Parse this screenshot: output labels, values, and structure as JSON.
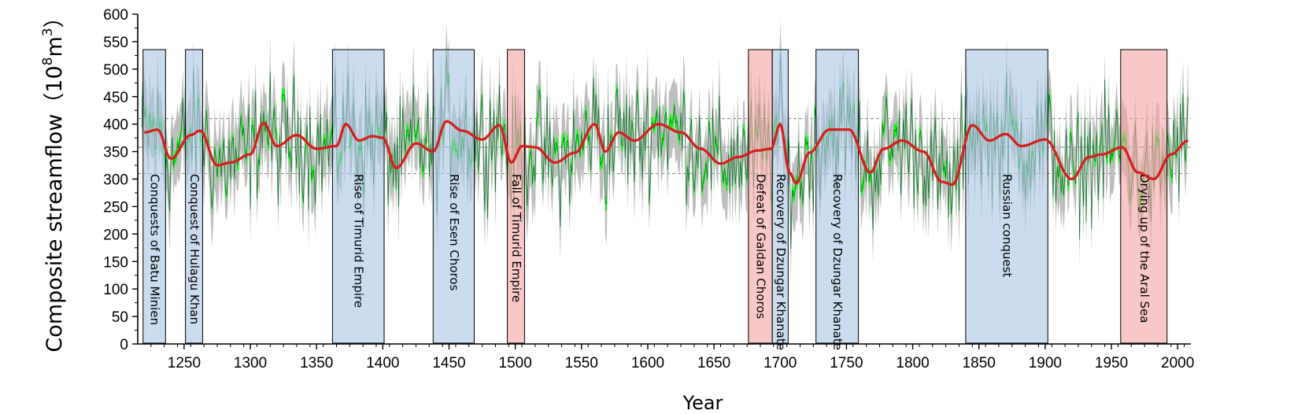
{
  "chart_data": {
    "type": "line",
    "xlabel": "Year",
    "ylabel": "Composite streamflow（10",
    "ylabel_sup1": "8",
    "ylabel_mid": "m",
    "ylabel_sup2": "3",
    "ylabel_end": "）",
    "xlim": [
      1215,
      2010
    ],
    "ylim": [
      0,
      600
    ],
    "x_ticks": [
      1250,
      1300,
      1350,
      1400,
      1450,
      1500,
      1550,
      1600,
      1650,
      1700,
      1750,
      1800,
      1850,
      1900,
      1950,
      2000
    ],
    "y_ticks": [
      0,
      50,
      100,
      150,
      200,
      250,
      300,
      350,
      400,
      450,
      500,
      550,
      600
    ],
    "reference_lines": [
      {
        "value": 358,
        "style": "solid"
      },
      {
        "value": 410,
        "style": "dashed"
      },
      {
        "value": 310,
        "style": "dashed"
      }
    ],
    "smoothed_series": {
      "name": "",
      "color": "#d71e1e",
      "x": [
        1220,
        1230,
        1240,
        1255,
        1262,
        1275,
        1285,
        1300,
        1310,
        1320,
        1335,
        1350,
        1365,
        1372,
        1382,
        1392,
        1400,
        1410,
        1425,
        1438,
        1448,
        1460,
        1475,
        1488,
        1497,
        1505,
        1515,
        1530,
        1545,
        1560,
        1568,
        1578,
        1590,
        1608,
        1625,
        1640,
        1655,
        1668,
        1683,
        1693,
        1700,
        1707,
        1712,
        1722,
        1737,
        1752,
        1768,
        1778,
        1792,
        1808,
        1822,
        1830,
        1845,
        1858,
        1870,
        1882,
        1900,
        1920,
        1933,
        1943,
        1958,
        1970,
        1982,
        1995,
        2008
      ],
      "y": [
        385,
        390,
        337,
        380,
        388,
        325,
        330,
        345,
        402,
        360,
        380,
        355,
        360,
        400,
        370,
        378,
        375,
        320,
        365,
        350,
        405,
        388,
        372,
        398,
        330,
        360,
        358,
        330,
        348,
        400,
        350,
        385,
        370,
        400,
        385,
        355,
        328,
        340,
        352,
        355,
        400,
        312,
        292,
        348,
        390,
        390,
        312,
        355,
        370,
        350,
        295,
        290,
        398,
        370,
        382,
        360,
        372,
        300,
        340,
        345,
        358,
        312,
        300,
        345,
        370
      ]
    },
    "raw_series_note_free": true,
    "raw_series_color": "#00ff00",
    "uncertainty_band_color": "#bebebe",
    "events": [
      {
        "label": "Conquests of Batu Minien",
        "start": 1219,
        "end": 1236,
        "color": "blue"
      },
      {
        "label": "Conquest of Hulagu Khan",
        "start": 1251,
        "end": 1264,
        "color": "blue"
      },
      {
        "label": "Rise of Timurid Empire",
        "start": 1362,
        "end": 1401,
        "color": "blue"
      },
      {
        "label": "Rise of Esen Choros",
        "start": 1438,
        "end": 1469,
        "color": "blue"
      },
      {
        "label": "Fall of Timurid Empire",
        "start": 1494,
        "end": 1507,
        "color": "red"
      },
      {
        "label": "Defeat of Galdan Choros",
        "start": 1676,
        "end": 1694,
        "color": "red"
      },
      {
        "label": "Recovery of Dzungar Khanate",
        "start": 1694,
        "end": 1706,
        "color": "blue"
      },
      {
        "label": "Recovery of Dzungar Khanate",
        "start": 1727,
        "end": 1759,
        "color": "blue"
      },
      {
        "label": "Russian conquest",
        "start": 1840,
        "end": 1902,
        "color": "blue"
      },
      {
        "label": "Drying up of the Aral Sea",
        "start": 1957,
        "end": 1992,
        "color": "red"
      }
    ]
  },
  "colors": {
    "event_blue": "#a9c7e3",
    "event_red": "#f4a6a6"
  }
}
